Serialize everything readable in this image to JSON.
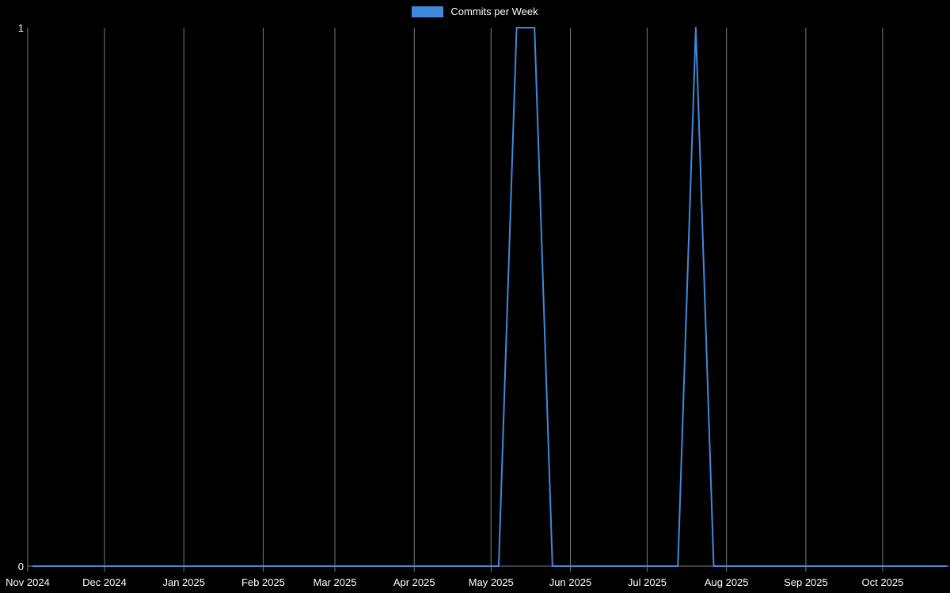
{
  "legend": {
    "items": [
      {
        "label": "Commits per Week",
        "color": "#4189dd"
      }
    ]
  },
  "colors": {
    "background": "#000000",
    "grid": "#7a7a7a",
    "axis": "#7a7a7a",
    "text": "#ffffff",
    "line": "#4189dd"
  },
  "chart_data": {
    "type": "line",
    "title": "Commits per Week",
    "legend_position": "top",
    "grid": true,
    "x_axis": {
      "start": "2024-11-01",
      "end": "2025-10-27",
      "ticks": [
        {
          "date": "2024-11-01",
          "label": "Nov 2024"
        },
        {
          "date": "2024-12-01",
          "label": "Dec 2024"
        },
        {
          "date": "2025-01-01",
          "label": "Jan 2025"
        },
        {
          "date": "2025-02-01",
          "label": "Feb 2025"
        },
        {
          "date": "2025-03-01",
          "label": "Mar 2025"
        },
        {
          "date": "2025-04-01",
          "label": "Apr 2025"
        },
        {
          "date": "2025-05-01",
          "label": "May 2025"
        },
        {
          "date": "2025-06-01",
          "label": "Jun 2025"
        },
        {
          "date": "2025-07-01",
          "label": "Jul 2025"
        },
        {
          "date": "2025-08-01",
          "label": "Aug 2025"
        },
        {
          "date": "2025-09-01",
          "label": "Sep 2025"
        },
        {
          "date": "2025-10-01",
          "label": "Oct 2025"
        }
      ]
    },
    "y_axis": {
      "min": 0,
      "max": 1,
      "tick_labels": [
        "0",
        "1"
      ]
    },
    "series": [
      {
        "name": "Commits per Week",
        "color": "#4189dd",
        "x": [
          "2024-11-03",
          "2024-11-10",
          "2024-11-17",
          "2024-11-24",
          "2024-12-01",
          "2024-12-08",
          "2024-12-15",
          "2024-12-22",
          "2024-12-29",
          "2025-01-05",
          "2025-01-12",
          "2025-01-19",
          "2025-01-26",
          "2025-02-02",
          "2025-02-09",
          "2025-02-16",
          "2025-02-23",
          "2025-03-02",
          "2025-03-09",
          "2025-03-16",
          "2025-03-23",
          "2025-03-30",
          "2025-04-06",
          "2025-04-13",
          "2025-04-20",
          "2025-04-27",
          "2025-05-04",
          "2025-05-11",
          "2025-05-18",
          "2025-05-25",
          "2025-06-01",
          "2025-06-08",
          "2025-06-15",
          "2025-06-22",
          "2025-06-29",
          "2025-07-06",
          "2025-07-13",
          "2025-07-20",
          "2025-07-27",
          "2025-08-03",
          "2025-08-10",
          "2025-08-17",
          "2025-08-24",
          "2025-08-31",
          "2025-09-07",
          "2025-09-14",
          "2025-09-21",
          "2025-09-28",
          "2025-10-05",
          "2025-10-12",
          "2025-10-19",
          "2025-10-26"
        ],
        "values": [
          0,
          0,
          0,
          0,
          0,
          0,
          0,
          0,
          0,
          0,
          0,
          0,
          0,
          0,
          0,
          0,
          0,
          0,
          0,
          0,
          0,
          0,
          0,
          0,
          0,
          0,
          0,
          1,
          1,
          0,
          0,
          0,
          0,
          0,
          0,
          0,
          0,
          1,
          0,
          0,
          0,
          0,
          0,
          0,
          0,
          0,
          0,
          0,
          0,
          0,
          0,
          0
        ]
      }
    ]
  }
}
